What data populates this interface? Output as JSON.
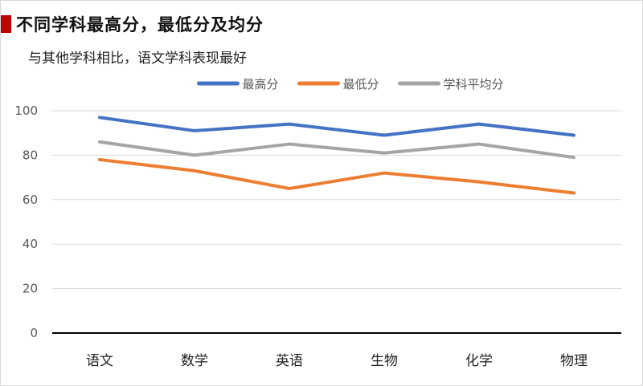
{
  "header": {
    "title": "不同学科最高分，最低分及均分",
    "subtitle": "与其他学科相比，语文学科表现最好"
  },
  "chart_data": {
    "type": "line",
    "categories": [
      "语文",
      "数学",
      "英语",
      "生物",
      "化学",
      "物理"
    ],
    "series": [
      {
        "name": "最高分",
        "color": "#4472c4",
        "values": [
          97,
          91,
          94,
          89,
          94,
          89
        ]
      },
      {
        "name": "最低分",
        "color": "#ed7d31",
        "values": [
          78,
          73,
          65,
          72,
          68,
          63
        ]
      },
      {
        "name": "学科平均分",
        "color": "#a5a5a5",
        "values": [
          86,
          80,
          85,
          81,
          85,
          79
        ]
      }
    ],
    "ylim": [
      0,
      100
    ],
    "yticks": [
      0,
      20,
      40,
      60,
      80,
      100
    ],
    "grid": true,
    "legend_position": "top-center"
  }
}
